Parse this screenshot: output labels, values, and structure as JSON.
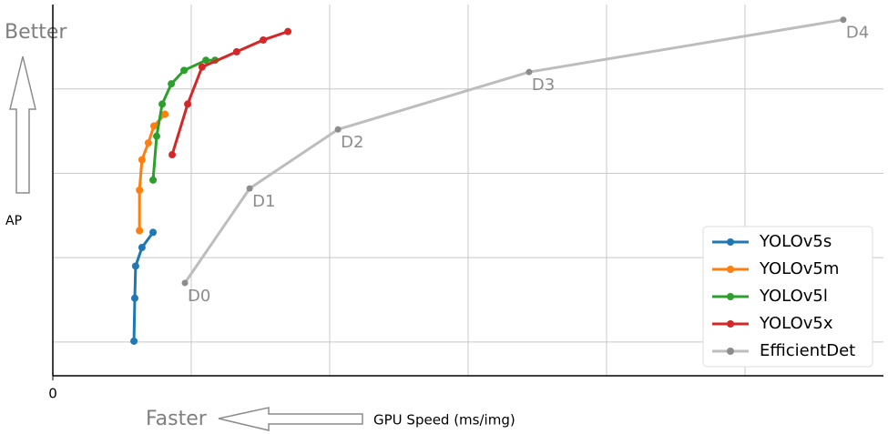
{
  "chart_data": {
    "type": "line",
    "xlabel": "GPU Speed (ms/img)",
    "ylabel": "AP",
    "annotations": [
      "Better",
      "Faster"
    ],
    "xlim": [
      0,
      30
    ],
    "ylim": [
      33,
      55
    ],
    "xticks": [
      0
    ],
    "xgrid": [
      5,
      10,
      15,
      20,
      25
    ],
    "ygrid": [
      35,
      40,
      45,
      50
    ],
    "grid": true,
    "legend": "lower right",
    "series": [
      {
        "name": "YOLOv5s",
        "color": "#1f77b4",
        "x": [
          2.93,
          2.96,
          2.99,
          3.22,
          3.62
        ],
        "values": [
          35.05,
          37.6,
          39.5,
          40.6,
          41.5
        ]
      },
      {
        "name": "YOLOv5m",
        "color": "#ff7f0e",
        "x": [
          3.13,
          3.13,
          3.22,
          3.45,
          3.65,
          4.05
        ],
        "values": [
          41.6,
          44.0,
          45.8,
          46.8,
          47.8,
          48.5
        ]
      },
      {
        "name": "YOLOv5l",
        "color": "#2ca02c",
        "x": [
          3.62,
          3.75,
          3.95,
          4.28,
          4.74,
          5.53,
          5.86
        ],
        "values": [
          44.6,
          47.2,
          49.1,
          50.3,
          51.1,
          51.7,
          51.7
        ]
      },
      {
        "name": "YOLOv5x",
        "color": "#d62728",
        "x": [
          4.31,
          4.87,
          5.39,
          6.64,
          7.6,
          8.49
        ],
        "values": [
          46.1,
          49.1,
          51.3,
          52.2,
          52.9,
          53.4
        ]
      },
      {
        "name": "EfficientDet",
        "color": "#bdbdbd",
        "marker_color": "#8c8c8c",
        "x": [
          4.77,
          7.11,
          10.3,
          17.2,
          28.55
        ],
        "values": [
          38.5,
          44.1,
          47.6,
          51.0,
          54.1
        ],
        "point_labels": [
          "D0",
          "D1",
          "D2",
          "D3",
          "D4"
        ]
      }
    ]
  }
}
